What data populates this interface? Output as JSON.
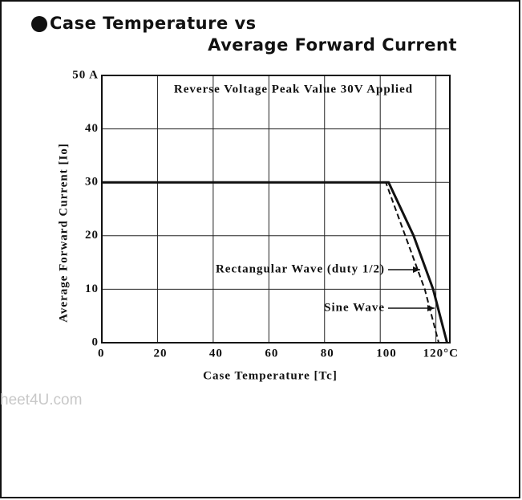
{
  "chart_data": {
    "type": "line",
    "title": [
      "Case Temperature vs",
      "Average Forward Current"
    ],
    "annotation": "Reverse Voltage Peak Value 30V Applied",
    "xlabel": "Case Temperature [Tc]",
    "ylabel": "Average Forward Current [Io]",
    "watermark": "heet4U.com",
    "xlim": [
      0,
      125
    ],
    "ylim": [
      0,
      50
    ],
    "xticks": [
      0,
      20,
      40,
      60,
      80,
      100,
      {
        "value": 120,
        "label": "120°C"
      }
    ],
    "yticks": [
      0,
      10,
      20,
      30,
      40,
      {
        "value": 50,
        "label": "50 A"
      }
    ],
    "grid": true,
    "series": [
      {
        "name": "Rectangular Wave (duty 1/2)",
        "color": "#111111",
        "style": "dashed",
        "x": [
          0,
          102,
          109,
          116,
          121
        ],
        "values": [
          30,
          30,
          20,
          10,
          0
        ]
      },
      {
        "name": "Sine Wave",
        "color": "#111111",
        "style": "solid",
        "x": [
          0,
          103,
          112,
          119,
          124
        ],
        "values": [
          30,
          30,
          20,
          10,
          0
        ]
      }
    ]
  }
}
